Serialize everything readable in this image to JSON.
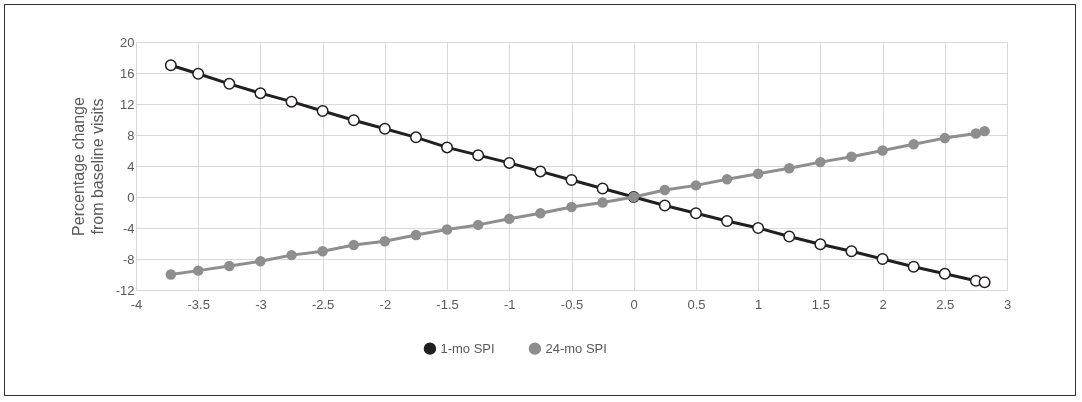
{
  "chart_data": {
    "type": "line",
    "ylabel": "Percentage change from baseline visits",
    "x": [
      -3.72,
      -3.5,
      -3.25,
      -3,
      -2.75,
      -2.5,
      -2.25,
      -2,
      -1.75,
      -1.5,
      -1.25,
      -1,
      -0.75,
      -0.5,
      -0.25,
      0,
      0.25,
      0.5,
      0.75,
      1,
      1.25,
      1.5,
      1.75,
      2,
      2.25,
      2.5,
      2.75,
      2.82
    ],
    "series": [
      {
        "name": "1-mo SPI",
        "color": "#231f20",
        "values": [
          17.0,
          15.9,
          14.6,
          13.4,
          12.3,
          11.1,
          9.9,
          8.8,
          7.7,
          6.4,
          5.4,
          4.4,
          3.3,
          2.2,
          1.1,
          0,
          -1.1,
          -2.1,
          -3.1,
          -4.0,
          -5.1,
          -6.1,
          -7.0,
          -8.0,
          -9.0,
          -9.9,
          -10.8,
          -11.0
        ]
      },
      {
        "name": "24-mo SPI",
        "color": "#8e8e90",
        "values": [
          -10.0,
          -9.5,
          -8.9,
          -8.3,
          -7.5,
          -7.0,
          -6.2,
          -5.7,
          -4.9,
          -4.2,
          -3.6,
          -2.8,
          -2.1,
          -1.3,
          -0.7,
          0,
          0.9,
          1.5,
          2.3,
          3.0,
          3.7,
          4.5,
          5.2,
          6.0,
          6.8,
          7.6,
          8.2,
          8.5
        ]
      }
    ],
    "xlim": [
      -4,
      3
    ],
    "xticks": [
      -4,
      -3.5,
      -3,
      -2.5,
      -2,
      -1.5,
      -1,
      -0.5,
      0,
      0.5,
      1,
      1.5,
      2,
      2.5,
      3
    ],
    "ylim": [
      -12,
      20
    ],
    "yticks": [
      -12,
      -8,
      -4,
      0,
      4,
      8,
      12,
      16,
      20
    ],
    "grid": true,
    "legend": "bottom",
    "marker": "circle",
    "line_style": "solid"
  }
}
